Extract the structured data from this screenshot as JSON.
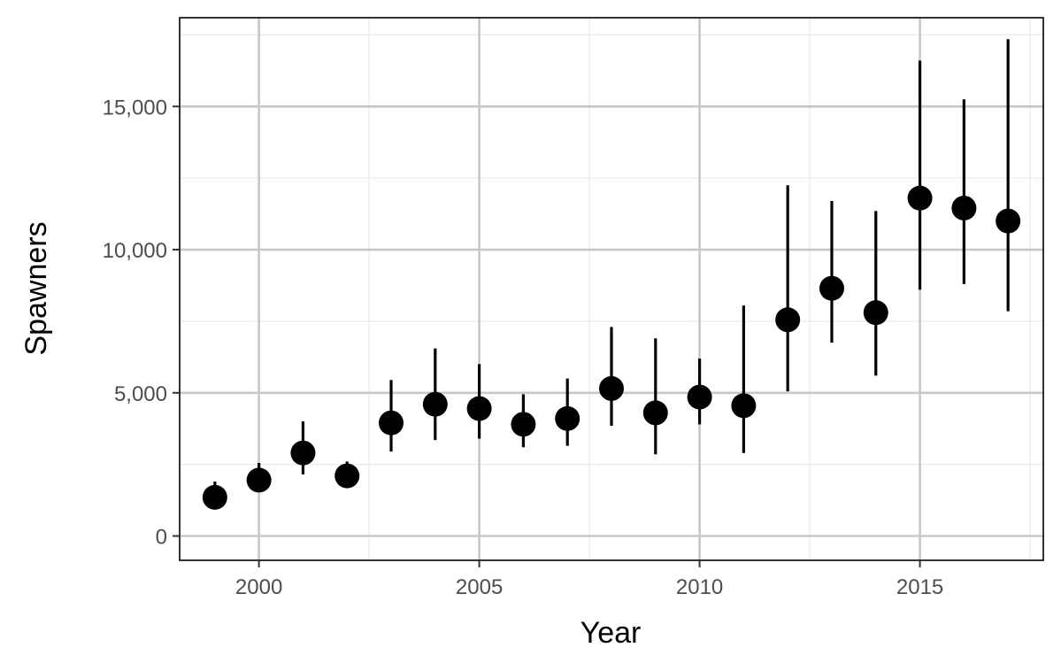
{
  "chart_data": {
    "type": "scatter",
    "xlabel": "Year",
    "ylabel": "Spawners",
    "xlim": [
      1998.2,
      2017.8
    ],
    "ylim": [
      -850,
      18100
    ],
    "x_ticks": [
      2000,
      2005,
      2010,
      2015
    ],
    "x_tick_labels": [
      "2000",
      "2005",
      "2010",
      "2015"
    ],
    "y_ticks": [
      0,
      5000,
      10000,
      15000
    ],
    "y_tick_labels": [
      "0",
      "5,000",
      "10,000",
      "15,000"
    ],
    "grid": true,
    "legend": "none",
    "points": [
      {
        "x": 1999,
        "y": 1350,
        "lo": 1150,
        "hi": 1900
      },
      {
        "x": 2000,
        "y": 1950,
        "lo": 1550,
        "hi": 2550
      },
      {
        "x": 2001,
        "y": 2900,
        "lo": 2150,
        "hi": 4000
      },
      {
        "x": 2002,
        "y": 2100,
        "lo": 1750,
        "hi": 2600
      },
      {
        "x": 2003,
        "y": 3950,
        "lo": 2950,
        "hi": 5450
      },
      {
        "x": 2004,
        "y": 4600,
        "lo": 3350,
        "hi": 6550
      },
      {
        "x": 2005,
        "y": 4450,
        "lo": 3400,
        "hi": 6000
      },
      {
        "x": 2006,
        "y": 3900,
        "lo": 3100,
        "hi": 4950
      },
      {
        "x": 2007,
        "y": 4100,
        "lo": 3150,
        "hi": 5500
      },
      {
        "x": 2008,
        "y": 5150,
        "lo": 3850,
        "hi": 7300
      },
      {
        "x": 2009,
        "y": 4300,
        "lo": 2850,
        "hi": 6900
      },
      {
        "x": 2010,
        "y": 4850,
        "lo": 3900,
        "hi": 6200
      },
      {
        "x": 2011,
        "y": 4550,
        "lo": 2900,
        "hi": 8050
      },
      {
        "x": 2012,
        "y": 7550,
        "lo": 5050,
        "hi": 12250
      },
      {
        "x": 2013,
        "y": 8650,
        "lo": 6750,
        "hi": 11700
      },
      {
        "x": 2014,
        "y": 7800,
        "lo": 5600,
        "hi": 11350
      },
      {
        "x": 2015,
        "y": 11800,
        "lo": 8600,
        "hi": 16600
      },
      {
        "x": 2016,
        "y": 11450,
        "lo": 8800,
        "hi": 15250
      },
      {
        "x": 2017,
        "y": 11000,
        "lo": 7850,
        "hi": 17350
      }
    ]
  },
  "colors": {
    "point": "#000000",
    "grid_major": "#c8c8c8",
    "grid_minor": "#ebebeb",
    "panel_border": "#000000",
    "tick_text": "#4d4d4d"
  }
}
